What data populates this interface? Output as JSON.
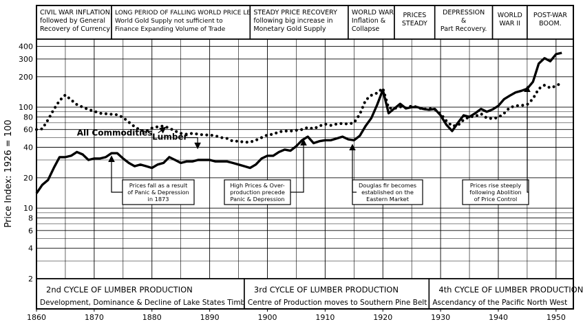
{
  "chart_data": {
    "type": "line",
    "ylabel": "Price Index: 1926 = 100",
    "y_scale": "log",
    "ylim": [
      2,
      450
    ],
    "xlim": [
      1860,
      1953
    ],
    "x_ticks": [
      1860,
      1870,
      1880,
      1890,
      1900,
      1910,
      1920,
      1930,
      1940,
      1950
    ],
    "y_ticks": [
      2,
      4,
      6,
      8,
      10,
      20,
      40,
      60,
      80,
      100,
      200,
      300,
      400
    ],
    "grid": true,
    "series": [
      {
        "name": "All Commodities",
        "style": "dotted",
        "points": [
          [
            1860,
            60
          ],
          [
            1861,
            61
          ],
          [
            1862,
            75
          ],
          [
            1863,
            95
          ],
          [
            1864,
            116
          ],
          [
            1865,
            132
          ],
          [
            1866,
            118
          ],
          [
            1867,
            106
          ],
          [
            1868,
            100
          ],
          [
            1869,
            95
          ],
          [
            1870,
            91
          ],
          [
            1871,
            87
          ],
          [
            1872,
            86
          ],
          [
            1873,
            85
          ],
          [
            1874,
            84
          ],
          [
            1875,
            79
          ],
          [
            1876,
            71
          ],
          [
            1877,
            64
          ],
          [
            1878,
            59
          ],
          [
            1879,
            58
          ],
          [
            1880,
            62
          ],
          [
            1881,
            64
          ],
          [
            1882,
            65
          ],
          [
            1883,
            62
          ],
          [
            1884,
            58
          ],
          [
            1885,
            55
          ],
          [
            1886,
            54
          ],
          [
            1887,
            55
          ],
          [
            1888,
            54
          ],
          [
            1889,
            53
          ],
          [
            1890,
            53
          ],
          [
            1891,
            52
          ],
          [
            1892,
            50
          ],
          [
            1893,
            49
          ],
          [
            1894,
            46
          ],
          [
            1895,
            46
          ],
          [
            1896,
            45
          ],
          [
            1897,
            45
          ],
          [
            1898,
            47
          ],
          [
            1899,
            50
          ],
          [
            1900,
            53
          ],
          [
            1901,
            54
          ],
          [
            1902,
            57
          ],
          [
            1903,
            58
          ],
          [
            1904,
            58
          ],
          [
            1905,
            59
          ],
          [
            1906,
            60
          ],
          [
            1907,
            63
          ],
          [
            1908,
            61
          ],
          [
            1909,
            65
          ],
          [
            1910,
            68
          ],
          [
            1911,
            66
          ],
          [
            1912,
            68
          ],
          [
            1913,
            69
          ],
          [
            1914,
            68
          ],
          [
            1915,
            70
          ],
          [
            1916,
            85
          ],
          [
            1917,
            117
          ],
          [
            1918,
            131
          ],
          [
            1919,
            138
          ],
          [
            1920,
            154
          ],
          [
            1921,
            98
          ],
          [
            1922,
            97
          ],
          [
            1923,
            101
          ],
          [
            1924,
            98
          ],
          [
            1925,
            103
          ],
          [
            1926,
            100
          ],
          [
            1927,
            95
          ],
          [
            1928,
            97
          ],
          [
            1929,
            95
          ],
          [
            1930,
            86
          ],
          [
            1931,
            73
          ],
          [
            1932,
            65
          ],
          [
            1933,
            66
          ],
          [
            1934,
            75
          ],
          [
            1935,
            80
          ],
          [
            1936,
            81
          ],
          [
            1937,
            86
          ],
          [
            1938,
            78
          ],
          [
            1939,
            77
          ],
          [
            1940,
            79
          ],
          [
            1941,
            87
          ],
          [
            1942,
            99
          ],
          [
            1943,
            103
          ],
          [
            1944,
            104
          ],
          [
            1945,
            106
          ],
          [
            1946,
            121
          ],
          [
            1947,
            152
          ],
          [
            1948,
            165
          ],
          [
            1949,
            155
          ],
          [
            1950,
            162
          ],
          [
            1951,
            175
          ]
        ]
      },
      {
        "name": "Lumber",
        "style": "solid",
        "points": [
          [
            1860,
            14
          ],
          [
            1861,
            17
          ],
          [
            1862,
            19
          ],
          [
            1863,
            25
          ],
          [
            1864,
            32
          ],
          [
            1865,
            32
          ],
          [
            1866,
            33
          ],
          [
            1867,
            36
          ],
          [
            1868,
            34
          ],
          [
            1869,
            30
          ],
          [
            1870,
            31
          ],
          [
            1871,
            31
          ],
          [
            1872,
            32
          ],
          [
            1873,
            35
          ],
          [
            1874,
            35
          ],
          [
            1875,
            31
          ],
          [
            1876,
            28
          ],
          [
            1877,
            26
          ],
          [
            1878,
            27
          ],
          [
            1879,
            26
          ],
          [
            1880,
            25
          ],
          [
            1881,
            27
          ],
          [
            1882,
            28
          ],
          [
            1883,
            32
          ],
          [
            1884,
            30
          ],
          [
            1885,
            28
          ],
          [
            1886,
            29
          ],
          [
            1887,
            29
          ],
          [
            1888,
            30
          ],
          [
            1889,
            30
          ],
          [
            1890,
            30
          ],
          [
            1891,
            29
          ],
          [
            1892,
            29
          ],
          [
            1893,
            29
          ],
          [
            1894,
            28
          ],
          [
            1895,
            27
          ],
          [
            1896,
            26
          ],
          [
            1897,
            25
          ],
          [
            1898,
            27
          ],
          [
            1899,
            31
          ],
          [
            1900,
            33
          ],
          [
            1901,
            33
          ],
          [
            1902,
            36
          ],
          [
            1903,
            38
          ],
          [
            1904,
            37
          ],
          [
            1905,
            41
          ],
          [
            1906,
            47
          ],
          [
            1907,
            51
          ],
          [
            1908,
            44
          ],
          [
            1909,
            46
          ],
          [
            1910,
            47
          ],
          [
            1911,
            47
          ],
          [
            1912,
            49
          ],
          [
            1913,
            51
          ],
          [
            1914,
            48
          ],
          [
            1915,
            47
          ],
          [
            1916,
            52
          ],
          [
            1917,
            65
          ],
          [
            1918,
            78
          ],
          [
            1919,
            105
          ],
          [
            1920,
            148
          ],
          [
            1921,
            87
          ],
          [
            1922,
            97
          ],
          [
            1923,
            108
          ],
          [
            1924,
            97
          ],
          [
            1925,
            100
          ],
          [
            1926,
            100
          ],
          [
            1927,
            96
          ],
          [
            1928,
            94
          ],
          [
            1929,
            96
          ],
          [
            1930,
            83
          ],
          [
            1931,
            67
          ],
          [
            1932,
            58
          ],
          [
            1933,
            70
          ],
          [
            1934,
            83
          ],
          [
            1935,
            80
          ],
          [
            1936,
            87
          ],
          [
            1937,
            96
          ],
          [
            1938,
            90
          ],
          [
            1939,
            95
          ],
          [
            1940,
            103
          ],
          [
            1941,
            120
          ],
          [
            1942,
            130
          ],
          [
            1943,
            140
          ],
          [
            1944,
            145
          ],
          [
            1945,
            152
          ],
          [
            1946,
            178
          ],
          [
            1947,
            270
          ],
          [
            1948,
            305
          ],
          [
            1949,
            285
          ],
          [
            1950,
            335
          ],
          [
            1951,
            345
          ]
        ]
      }
    ],
    "series_labels": [
      {
        "series": 0,
        "text": "All Commodities",
        "x": 1867,
        "y": 63
      },
      {
        "series": 1,
        "text": "Lumber",
        "x": 1881,
        "y": 44
      }
    ],
    "annotations": [
      {
        "lines": [
          "Prices fall as a result",
          "of Panic & Depression",
          "in 1873"
        ],
        "points_to": [
          1873,
          35
        ]
      },
      {
        "lines": [
          "High Prices & Over-",
          "production precede",
          "Panic & Depression"
        ],
        "points_to": [
          1907,
          51
        ]
      },
      {
        "lines": [
          "Douglas fir becomes",
          "established on the",
          "Eastern Market"
        ],
        "points_to": [
          1915,
          47
        ]
      },
      {
        "lines": [
          "Prices rise steeply",
          "following Abolition",
          "of Price Control"
        ],
        "points_to": [
          1946,
          178
        ]
      }
    ],
    "periods": [
      {
        "start": 1860,
        "end": 1873,
        "lines": [
          "CIVIL WAR INFLATION.",
          "followed by General",
          "Recovery of Currency"
        ]
      },
      {
        "start": 1873,
        "end": 1897,
        "lines": [
          "LONG PERIOD OF FALLING WORLD PRICE LEVEL.",
          "World Gold Supply not sufficient to",
          "Finance Expanding Volume of Trade"
        ]
      },
      {
        "start": 1897,
        "end": 1914,
        "lines": [
          "STEADY PRICE RECOVERY",
          "following big increase in",
          "Monetary Gold Supply"
        ]
      },
      {
        "start": 1914,
        "end": 1922,
        "lines": [
          "WORLD WAR I.",
          "Inflation &",
          "Collapse"
        ]
      },
      {
        "start": 1922,
        "end": 1929,
        "lines": [
          "PRICES",
          "STEADY"
        ]
      },
      {
        "start": 1929,
        "end": 1939,
        "lines": [
          "DEPRESSION",
          "&",
          "Part Recovery."
        ]
      },
      {
        "start": 1939,
        "end": 1945,
        "lines": [
          "WORLD",
          "WAR II"
        ]
      },
      {
        "start": 1945,
        "end": 1953,
        "lines": [
          "POST-WAR",
          "BOOM."
        ]
      }
    ],
    "cycles": [
      {
        "start": 1860,
        "end": 1896,
        "lines": [
          "2nd CYCLE OF LUMBER PRODUCTION",
          "Development, Dominance & Decline of Lake States Timber"
        ]
      },
      {
        "start": 1896,
        "end": 1928,
        "lines": [
          "3rd CYCLE OF LUMBER PRODUCTION",
          "Centre of Production moves to Southern Pine Belt"
        ]
      },
      {
        "start": 1928,
        "end": 1953,
        "lines": [
          "4th CYCLE OF LUMBER PRODUCTION",
          "Ascendancy of the Pacific North West"
        ]
      }
    ]
  }
}
